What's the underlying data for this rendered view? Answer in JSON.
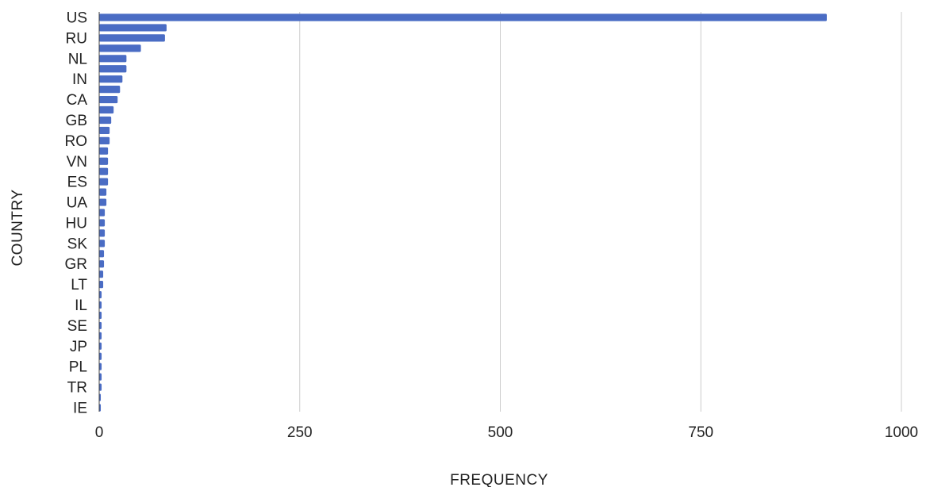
{
  "chart_data": {
    "type": "bar",
    "orientation": "horizontal",
    "title": "",
    "xlabel": "FREQUENCY",
    "ylabel": "COUNTRY",
    "xlim": [
      0,
      1000
    ],
    "x_ticks": [
      0,
      250,
      500,
      750,
      1000
    ],
    "grid": "vertical",
    "legend": "none",
    "categories": [
      "US",
      "",
      "RU",
      "",
      "NL",
      "",
      "IN",
      "",
      "CA",
      "",
      "GB",
      "",
      "RO",
      "",
      "VN",
      "",
      "ES",
      "",
      "UA",
      "",
      "HU",
      "",
      "SK",
      "",
      "GR",
      "",
      "LT",
      "",
      "IL",
      "",
      "SE",
      "",
      "JP",
      "",
      "PL",
      "",
      "TR",
      "",
      "IE"
    ],
    "values": [
      907,
      84,
      82,
      52,
      34,
      34,
      29,
      26,
      23,
      18,
      15,
      13,
      13,
      11,
      11,
      11,
      11,
      9,
      9,
      7,
      7,
      7,
      7,
      6,
      6,
      5,
      5,
      3,
      3,
      3,
      3,
      3,
      3,
      3,
      3,
      3,
      3,
      2,
      2
    ],
    "bar_color": "#4a6cc4",
    "grid_color": "#cccccc"
  }
}
